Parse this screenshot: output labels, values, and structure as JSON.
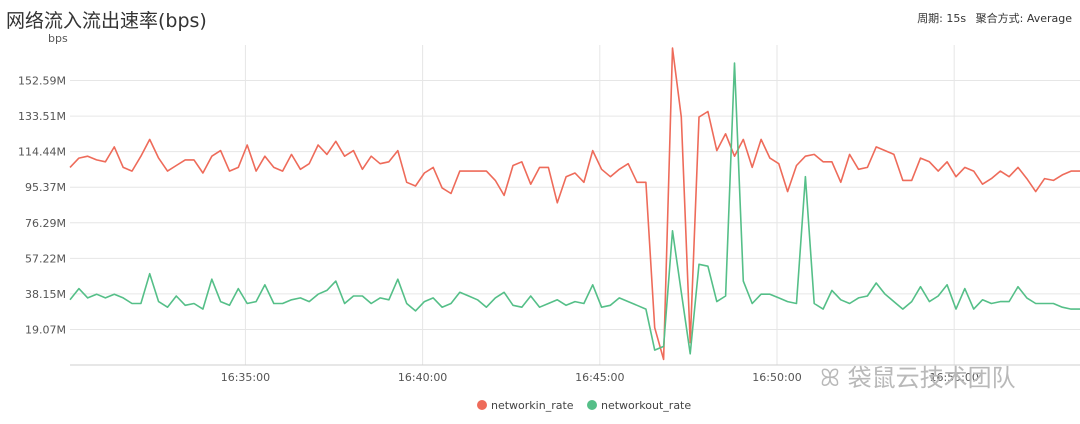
{
  "header": {
    "title": "网络流入流出速率(bps)",
    "period_label": "周期: 15s",
    "aggregation_label": "聚合方式: Average"
  },
  "watermark": {
    "text": "袋鼠云技术团队"
  },
  "colors": {
    "in": "#ee6b5a",
    "out": "#55bf88",
    "grid": "#e6e6e6"
  },
  "chart_data": {
    "type": "line",
    "ylabel": "bps",
    "ylim": [
      0,
      171.66
    ],
    "yticks": [
      {
        "v": 19.07,
        "label": "19.07M"
      },
      {
        "v": 38.15,
        "label": "38.15M"
      },
      {
        "v": 57.22,
        "label": "57.22M"
      },
      {
        "v": 76.29,
        "label": "76.29M"
      },
      {
        "v": 95.37,
        "label": "95.37M"
      },
      {
        "v": 114.44,
        "label": "114.44M"
      },
      {
        "v": 133.51,
        "label": "133.51M"
      },
      {
        "v": 152.59,
        "label": "152.59M"
      }
    ],
    "xlim": [
      0,
      28.5
    ],
    "xticks": [
      {
        "v": 4.95,
        "label": "16:35:00"
      },
      {
        "v": 9.95,
        "label": "16:40:00"
      },
      {
        "v": 14.95,
        "label": "16:45:00"
      },
      {
        "v": 19.95,
        "label": "16:50:00"
      },
      {
        "v": 24.95,
        "label": "16:55:00"
      }
    ],
    "series": [
      {
        "name": "networkin_rate",
        "points": [
          [
            0,
            106
          ],
          [
            0.25,
            111
          ],
          [
            0.5,
            112
          ],
          [
            0.75,
            110
          ],
          [
            1,
            109
          ],
          [
            1.25,
            117
          ],
          [
            1.5,
            106
          ],
          [
            1.75,
            104
          ],
          [
            2,
            112
          ],
          [
            2.25,
            121
          ],
          [
            2.5,
            111
          ],
          [
            2.75,
            104
          ],
          [
            3,
            107
          ],
          [
            3.25,
            110
          ],
          [
            3.5,
            110
          ],
          [
            3.75,
            103
          ],
          [
            4,
            112
          ],
          [
            4.25,
            115
          ],
          [
            4.5,
            104
          ],
          [
            4.75,
            106
          ],
          [
            5,
            118
          ],
          [
            5.25,
            104
          ],
          [
            5.5,
            112
          ],
          [
            5.75,
            106
          ],
          [
            6,
            104
          ],
          [
            6.25,
            113
          ],
          [
            6.5,
            105
          ],
          [
            6.75,
            108
          ],
          [
            7,
            118
          ],
          [
            7.25,
            113
          ],
          [
            7.5,
            120
          ],
          [
            7.75,
            112
          ],
          [
            8,
            115
          ],
          [
            8.25,
            105
          ],
          [
            8.5,
            112
          ],
          [
            8.75,
            108
          ],
          [
            9,
            109
          ],
          [
            9.25,
            115
          ],
          [
            9.5,
            98
          ],
          [
            9.75,
            96
          ],
          [
            10,
            103
          ],
          [
            10.25,
            106
          ],
          [
            10.5,
            95
          ],
          [
            10.75,
            92
          ],
          [
            11,
            104
          ],
          [
            11.25,
            104
          ],
          [
            11.5,
            104
          ],
          [
            11.75,
            104
          ],
          [
            12,
            99
          ],
          [
            12.25,
            91
          ],
          [
            12.5,
            107
          ],
          [
            12.75,
            109
          ],
          [
            13,
            97
          ],
          [
            13.25,
            106
          ],
          [
            13.5,
            106
          ],
          [
            13.75,
            87
          ],
          [
            14,
            101
          ],
          [
            14.25,
            103
          ],
          [
            14.5,
            98
          ],
          [
            14.75,
            115
          ],
          [
            15,
            105
          ],
          [
            15.25,
            101
          ],
          [
            15.5,
            105
          ],
          [
            15.75,
            108
          ],
          [
            16,
            98
          ],
          [
            16.25,
            98
          ],
          [
            16.5,
            20
          ],
          [
            16.75,
            3
          ],
          [
            17,
            170
          ],
          [
            17.25,
            133
          ],
          [
            17.5,
            12
          ],
          [
            17.75,
            133
          ],
          [
            18,
            136
          ],
          [
            18.25,
            115
          ],
          [
            18.5,
            124
          ],
          [
            18.75,
            112
          ],
          [
            19,
            121
          ],
          [
            19.25,
            106
          ],
          [
            19.5,
            121
          ],
          [
            19.75,
            111
          ],
          [
            20,
            108
          ],
          [
            20.25,
            93
          ],
          [
            20.5,
            107
          ],
          [
            20.75,
            112
          ],
          [
            21,
            113
          ],
          [
            21.25,
            109
          ],
          [
            21.5,
            109
          ],
          [
            21.75,
            98
          ],
          [
            22,
            113
          ],
          [
            22.25,
            105
          ],
          [
            22.5,
            106
          ],
          [
            22.75,
            117
          ],
          [
            23,
            115
          ],
          [
            23.25,
            113
          ],
          [
            23.5,
            99
          ],
          [
            23.75,
            99
          ],
          [
            24,
            111
          ],
          [
            24.25,
            109
          ],
          [
            24.5,
            104
          ],
          [
            24.75,
            109
          ],
          [
            25,
            101
          ],
          [
            25.25,
            106
          ],
          [
            25.5,
            104
          ],
          [
            25.75,
            97
          ],
          [
            26,
            100
          ],
          [
            26.25,
            104
          ],
          [
            26.5,
            101
          ],
          [
            26.75,
            106
          ],
          [
            27,
            100
          ],
          [
            27.25,
            93
          ],
          [
            27.5,
            100
          ],
          [
            27.75,
            99
          ],
          [
            28,
            102
          ],
          [
            28.25,
            104
          ],
          [
            28.5,
            104
          ]
        ]
      },
      {
        "name": "networkout_rate",
        "points": [
          [
            0,
            35
          ],
          [
            0.25,
            41
          ],
          [
            0.5,
            36
          ],
          [
            0.75,
            38
          ],
          [
            1,
            36
          ],
          [
            1.25,
            38
          ],
          [
            1.5,
            36
          ],
          [
            1.75,
            33
          ],
          [
            2,
            33
          ],
          [
            2.25,
            49
          ],
          [
            2.5,
            34
          ],
          [
            2.75,
            31
          ],
          [
            3,
            37
          ],
          [
            3.25,
            32
          ],
          [
            3.5,
            33
          ],
          [
            3.75,
            30
          ],
          [
            4,
            46
          ],
          [
            4.25,
            34
          ],
          [
            4.5,
            32
          ],
          [
            4.75,
            41
          ],
          [
            5,
            33
          ],
          [
            5.25,
            34
          ],
          [
            5.5,
            43
          ],
          [
            5.75,
            33
          ],
          [
            6,
            33
          ],
          [
            6.25,
            35
          ],
          [
            6.5,
            36
          ],
          [
            6.75,
            34
          ],
          [
            7,
            38
          ],
          [
            7.25,
            40
          ],
          [
            7.5,
            45
          ],
          [
            7.75,
            33
          ],
          [
            8,
            37
          ],
          [
            8.25,
            37
          ],
          [
            8.5,
            33
          ],
          [
            8.75,
            36
          ],
          [
            9,
            35
          ],
          [
            9.25,
            46
          ],
          [
            9.5,
            33
          ],
          [
            9.75,
            29
          ],
          [
            10,
            34
          ],
          [
            10.25,
            36
          ],
          [
            10.5,
            31
          ],
          [
            10.75,
            33
          ],
          [
            11,
            39
          ],
          [
            11.25,
            37
          ],
          [
            11.5,
            35
          ],
          [
            11.75,
            31
          ],
          [
            12,
            36
          ],
          [
            12.25,
            39
          ],
          [
            12.5,
            32
          ],
          [
            12.75,
            31
          ],
          [
            13,
            37
          ],
          [
            13.25,
            31
          ],
          [
            13.5,
            33
          ],
          [
            13.75,
            35
          ],
          [
            14,
            32
          ],
          [
            14.25,
            34
          ],
          [
            14.5,
            33
          ],
          [
            14.75,
            43
          ],
          [
            15,
            31
          ],
          [
            15.25,
            32
          ],
          [
            15.5,
            36
          ],
          [
            15.75,
            34
          ],
          [
            16,
            32
          ],
          [
            16.25,
            30
          ],
          [
            16.5,
            8
          ],
          [
            16.75,
            10
          ],
          [
            17,
            72
          ],
          [
            17.25,
            39
          ],
          [
            17.5,
            6
          ],
          [
            17.75,
            54
          ],
          [
            18,
            53
          ],
          [
            18.25,
            34
          ],
          [
            18.5,
            37
          ],
          [
            18.75,
            162
          ],
          [
            19,
            45
          ],
          [
            19.25,
            33
          ],
          [
            19.5,
            38
          ],
          [
            19.75,
            38
          ],
          [
            20,
            36
          ],
          [
            20.25,
            34
          ],
          [
            20.5,
            33
          ],
          [
            20.75,
            101
          ],
          [
            21,
            33
          ],
          [
            21.25,
            30
          ],
          [
            21.5,
            40
          ],
          [
            21.75,
            35
          ],
          [
            22,
            33
          ],
          [
            22.25,
            36
          ],
          [
            22.5,
            37
          ],
          [
            22.75,
            44
          ],
          [
            23,
            38
          ],
          [
            23.25,
            34
          ],
          [
            23.5,
            30
          ],
          [
            23.75,
            34
          ],
          [
            24,
            42
          ],
          [
            24.25,
            34
          ],
          [
            24.5,
            37
          ],
          [
            24.75,
            43
          ],
          [
            25,
            30
          ],
          [
            25.25,
            41
          ],
          [
            25.5,
            30
          ],
          [
            25.75,
            35
          ],
          [
            26,
            33
          ],
          [
            26.25,
            34
          ],
          [
            26.5,
            34
          ],
          [
            26.75,
            42
          ],
          [
            27,
            36
          ],
          [
            27.25,
            33
          ],
          [
            27.5,
            33
          ],
          [
            27.75,
            33
          ],
          [
            28,
            31
          ],
          [
            28.25,
            30
          ],
          [
            28.5,
            30
          ]
        ]
      }
    ]
  }
}
